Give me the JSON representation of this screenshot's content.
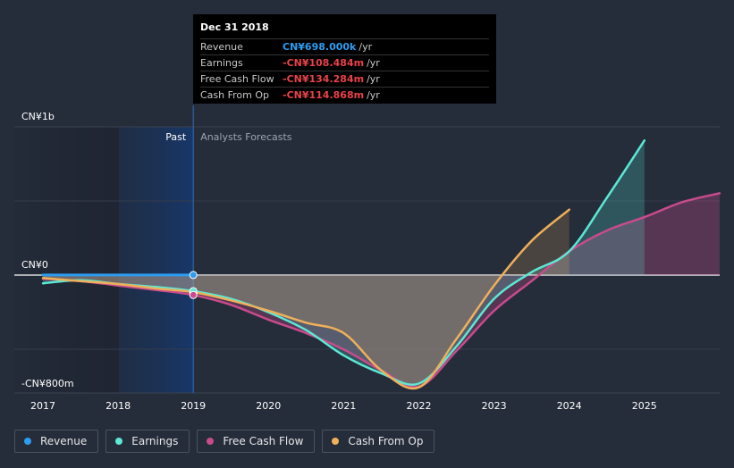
{
  "tooltip": {
    "date": "Dec 31 2018",
    "rows": [
      {
        "label": "Revenue",
        "value": "CN¥698.000k",
        "unit": "/yr",
        "color": "#2e9cf0"
      },
      {
        "label": "Earnings",
        "value": "-CN¥108.484m",
        "unit": "/yr",
        "color": "#e8424a"
      },
      {
        "label": "Free Cash Flow",
        "value": "-CN¥134.284m",
        "unit": "/yr",
        "color": "#e8424a"
      },
      {
        "label": "Cash From Op",
        "value": "-CN¥114.868m",
        "unit": "/yr",
        "color": "#e8424a"
      }
    ]
  },
  "past_label": "Past",
  "forecast_label": "Analysts Forecasts",
  "legend": [
    {
      "label": "Revenue",
      "color": "#2e9cf0"
    },
    {
      "label": "Earnings",
      "color": "#5ce8d4"
    },
    {
      "label": "Free Cash Flow",
      "color": "#c94b8c"
    },
    {
      "label": "Cash From Op",
      "color": "#eeb05a"
    }
  ],
  "chart_data": {
    "type": "line",
    "y_tick_labels": [
      {
        "value": 1000,
        "label": "CN¥1b"
      },
      {
        "value": 0,
        "label": "CN¥0"
      },
      {
        "value": -800,
        "label": "-CN¥800m"
      }
    ],
    "x_tick_labels": [
      "2017",
      "2018",
      "2019",
      "2020",
      "2021",
      "2022",
      "2023",
      "2024",
      "2025"
    ],
    "xlim": [
      2017,
      2026
    ],
    "ylim": [
      -800,
      1000
    ],
    "past_end": 2019,
    "series": [
      {
        "name": "Revenue",
        "color": "#2e9cf0",
        "points": [
          [
            2017,
            0.7
          ],
          [
            2018,
            0.7
          ],
          [
            2019,
            0.7
          ]
        ]
      },
      {
        "name": "Earnings",
        "color": "#5ce8d4",
        "points": [
          [
            2017,
            -55
          ],
          [
            2017.5,
            -35
          ],
          [
            2018,
            -60
          ],
          [
            2018.5,
            -80
          ],
          [
            2019,
            -108
          ],
          [
            2019.5,
            -160
          ],
          [
            2020,
            -250
          ],
          [
            2020.5,
            -370
          ],
          [
            2021,
            -540
          ],
          [
            2021.5,
            -660
          ],
          [
            2022,
            -730
          ],
          [
            2022.5,
            -480
          ],
          [
            2023,
            -160
          ],
          [
            2023.5,
            20
          ],
          [
            2024,
            160
          ],
          [
            2024.5,
            520
          ],
          [
            2025,
            905
          ]
        ]
      },
      {
        "name": "Free Cash Flow",
        "color": "#c94b8c",
        "points": [
          [
            2017,
            -25
          ],
          [
            2017.5,
            -40
          ],
          [
            2018,
            -70
          ],
          [
            2018.5,
            -100
          ],
          [
            2019,
            -134
          ],
          [
            2019.5,
            -200
          ],
          [
            2020,
            -300
          ],
          [
            2020.5,
            -390
          ],
          [
            2021,
            -500
          ],
          [
            2021.5,
            -640
          ],
          [
            2022,
            -750
          ],
          [
            2022.5,
            -510
          ],
          [
            2023,
            -240
          ],
          [
            2023.5,
            -40
          ],
          [
            2024,
            160
          ],
          [
            2024.5,
            300
          ],
          [
            2025,
            390
          ],
          [
            2025.5,
            490
          ],
          [
            2026,
            550
          ]
        ]
      },
      {
        "name": "Cash From Op",
        "color": "#eeb05a",
        "points": [
          [
            2017,
            -20
          ],
          [
            2017.5,
            -40
          ],
          [
            2018,
            -60
          ],
          [
            2018.5,
            -90
          ],
          [
            2019,
            -115
          ],
          [
            2019.5,
            -170
          ],
          [
            2020,
            -240
          ],
          [
            2020.5,
            -320
          ],
          [
            2021,
            -390
          ],
          [
            2021.5,
            -640
          ],
          [
            2022,
            -755
          ],
          [
            2022.5,
            -430
          ],
          [
            2023,
            -70
          ],
          [
            2023.5,
            230
          ],
          [
            2024,
            440
          ]
        ]
      }
    ]
  }
}
